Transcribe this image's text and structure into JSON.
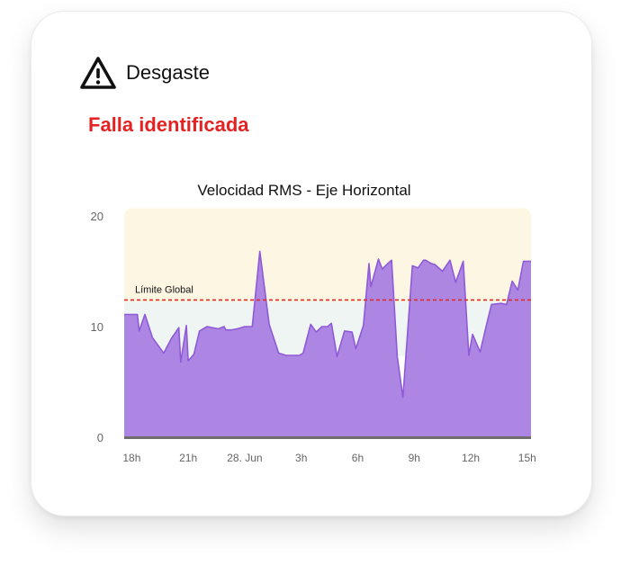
{
  "card": {
    "title": "Desgaste",
    "title_icon": "warning-triangle-icon",
    "status": "Falla identificada",
    "status_color": "#e52222"
  },
  "chart_data": {
    "type": "area",
    "title": "Velocidad RMS - Eje Horizontal",
    "xlabel": "",
    "ylabel": "",
    "ylim": [
      0,
      20
    ],
    "yticks": [
      0,
      10,
      20
    ],
    "xlim": [
      17.6,
      39.2
    ],
    "xtick_positions": [
      18,
      21,
      24,
      27,
      30,
      33,
      36,
      39
    ],
    "xtick_labels": [
      "18h",
      "21h",
      "28. Jun",
      "3h",
      "6h",
      "9h",
      "12h",
      "15h"
    ],
    "grid": false,
    "legend": "none",
    "series": [
      {
        "color": "#a97fe2",
        "x": [
          17.6,
          18.3,
          18.4,
          18.7,
          19.1,
          19.7,
          20.1,
          20.5,
          20.6,
          20.9,
          21.0,
          21.3,
          21.6,
          22.0,
          22.6,
          22.9,
          23.0,
          23.3,
          23.6,
          24.0,
          24.4,
          24.8,
          25.3,
          25.8,
          26.2,
          26.6,
          26.9,
          27.1,
          27.5,
          27.8,
          28.1,
          28.4,
          28.6,
          28.9,
          29.3,
          29.7,
          29.9,
          30.3,
          30.6,
          30.7,
          31.1,
          31.3,
          31.6,
          31.8,
          32.1,
          32.4,
          32.9,
          33.2,
          33.5,
          33.6,
          33.9,
          34.1,
          34.5,
          34.9,
          35.2,
          35.6,
          35.9,
          36.1,
          36.5,
          36.8,
          37.1,
          37.6,
          37.9,
          38.2,
          38.5,
          38.8,
          39.2
        ],
        "y": [
          11.1,
          11.1,
          9.6,
          11.1,
          9.0,
          7.6,
          8.9,
          9.9,
          6.8,
          10.1,
          6.9,
          7.5,
          9.6,
          10.0,
          9.8,
          10.0,
          9.7,
          9.7,
          9.8,
          10.0,
          10.0,
          16.8,
          10.2,
          7.6,
          7.4,
          7.4,
          7.4,
          7.6,
          10.2,
          9.5,
          10.0,
          10.0,
          10.3,
          7.3,
          9.6,
          9.5,
          8.0,
          10.1,
          15.7,
          13.6,
          16.1,
          15.2,
          15.7,
          16.0,
          7.3,
          3.6,
          15.5,
          15.3,
          16.0,
          16.0,
          15.7,
          15.6,
          15.0,
          16.0,
          14.0,
          15.9,
          7.4,
          9.3,
          7.7,
          9.9,
          12.0,
          12.1,
          12.0,
          14.1,
          13.3,
          15.9,
          15.9
        ]
      }
    ],
    "reference_line": {
      "label": "Límite Global",
      "value": 12.4,
      "color": "#dd2a2a"
    },
    "bands": [
      {
        "from": 0,
        "to": 7.5,
        "color": "#ffffff"
      },
      {
        "from": 7.5,
        "to": 12.4,
        "color": "#eef5f3"
      },
      {
        "from": 12.4,
        "to": 20.7,
        "color": "#fdf6e3"
      }
    ]
  }
}
